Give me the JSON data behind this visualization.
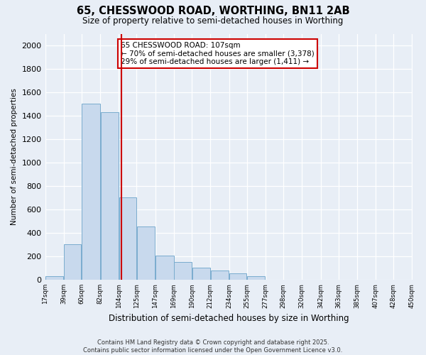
{
  "title1": "65, CHESSWOOD ROAD, WORTHING, BN11 2AB",
  "title2": "Size of property relative to semi-detached houses in Worthing",
  "xlabel": "Distribution of semi-detached houses by size in Worthing",
  "ylabel": "Number of semi-detached properties",
  "footnote": "Contains HM Land Registry data © Crown copyright and database right 2025.\nContains public sector information licensed under the Open Government Licence v3.0.",
  "bar_edges": [
    17,
    39,
    60,
    82,
    104,
    125,
    147,
    169,
    190,
    212,
    234,
    255,
    277,
    298,
    320,
    342,
    363,
    385,
    407,
    428,
    450
  ],
  "bar_heights": [
    28,
    300,
    1500,
    1430,
    700,
    455,
    205,
    150,
    100,
    80,
    55,
    30,
    0,
    0,
    0,
    0,
    0,
    0,
    0,
    0
  ],
  "bar_color": "#c8d9ed",
  "bar_edge_color": "#7aacce",
  "x_tick_labels": [
    "17sqm",
    "39sqm",
    "60sqm",
    "82sqm",
    "104sqm",
    "125sqm",
    "147sqm",
    "169sqm",
    "190sqm",
    "212sqm",
    "234sqm",
    "255sqm",
    "277sqm",
    "298sqm",
    "320sqm",
    "342sqm",
    "363sqm",
    "385sqm",
    "407sqm",
    "428sqm",
    "450sqm"
  ],
  "ylim": [
    0,
    2100
  ],
  "yticks": [
    0,
    200,
    400,
    600,
    800,
    1000,
    1200,
    1400,
    1600,
    1800,
    2000
  ],
  "property_size": 107,
  "red_line_color": "#cc0000",
  "annotation_box_color": "#cc0000",
  "annotation_text_line1": "65 CHESSWOOD ROAD: 107sqm",
  "annotation_text_line2": "← 70% of semi-detached houses are smaller (3,378)",
  "annotation_text_line3": "29% of semi-detached houses are larger (1,411) →",
  "background_color": "#e8eef6",
  "plot_bg_color": "#e8eef6",
  "grid_color": "#ffffff"
}
